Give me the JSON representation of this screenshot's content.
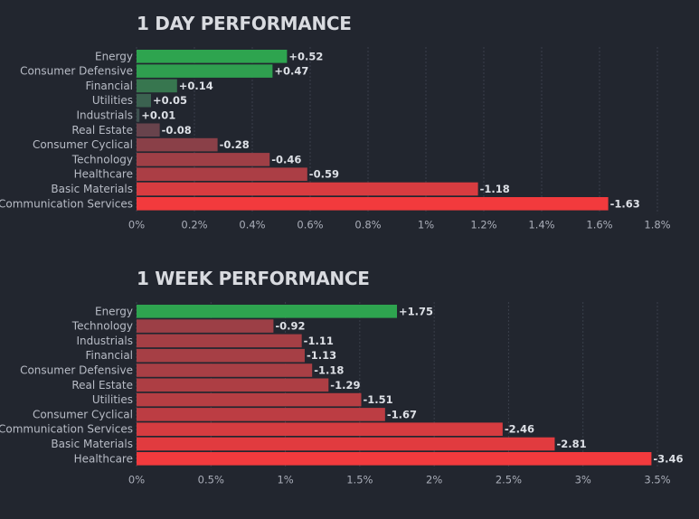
{
  "colors": {
    "background": "#22262f",
    "positive_strong": "#2ea44f",
    "negative_strong": "#f23a3d",
    "neutral": "#414550"
  },
  "chart_data": [
    {
      "type": "bar",
      "orientation": "horizontal",
      "title": "1 DAY PERFORMANCE",
      "categories": [
        "Energy",
        "Consumer Defensive",
        "Financial",
        "Utilities",
        "Industrials",
        "Real Estate",
        "Consumer Cyclical",
        "Technology",
        "Healthcare",
        "Basic Materials",
        "Communication Services"
      ],
      "values": [
        0.52,
        0.47,
        0.14,
        0.05,
        0.01,
        -0.08,
        -0.28,
        -0.46,
        -0.59,
        -1.18,
        -1.63
      ],
      "value_labels": [
        "+0.52",
        "+0.47",
        "+0.14",
        "+0.05",
        "+0.01",
        "-0.08",
        "-0.28",
        "-0.46",
        "-0.59",
        "-1.18",
        "-1.63"
      ],
      "xlim": [
        0,
        1.8
      ],
      "xticks": [
        "0%",
        "0.2%",
        "0.4%",
        "0.6%",
        "0.8%",
        "1%",
        "1.2%",
        "1.4%",
        "1.6%",
        "1.8%"
      ],
      "xlabel": "",
      "ylabel": "",
      "grid": true
    },
    {
      "type": "bar",
      "orientation": "horizontal",
      "title": "1 WEEK PERFORMANCE",
      "categories": [
        "Energy",
        "Technology",
        "Industrials",
        "Financial",
        "Consumer Defensive",
        "Real Estate",
        "Utilities",
        "Consumer Cyclical",
        "Communication Services",
        "Basic Materials",
        "Healthcare"
      ],
      "values": [
        1.75,
        -0.92,
        -1.11,
        -1.13,
        -1.18,
        -1.29,
        -1.51,
        -1.67,
        -2.46,
        -2.81,
        -3.46
      ],
      "value_labels": [
        "+1.75",
        "-0.92",
        "-1.11",
        "-1.13",
        "-1.18",
        "-1.29",
        "-1.51",
        "-1.67",
        "-2.46",
        "-2.81",
        "-3.46"
      ],
      "xlim": [
        0,
        3.5
      ],
      "xticks": [
        "0%",
        "0.5%",
        "1%",
        "1.5%",
        "2%",
        "2.5%",
        "3%",
        "3.5%"
      ],
      "xlabel": "",
      "ylabel": "",
      "grid": true
    }
  ]
}
